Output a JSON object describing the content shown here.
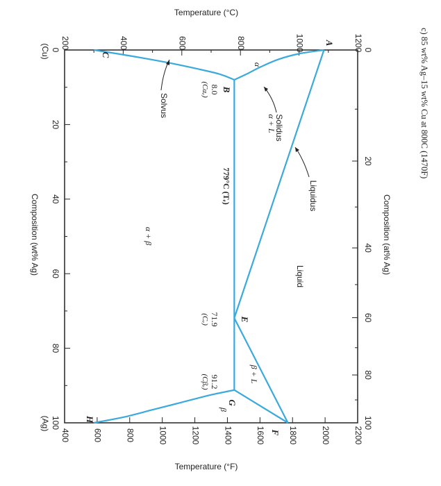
{
  "heading": "c)   85 wt% Ag–15 wt% Cu at 800C (1470F)",
  "colors": {
    "curve": "#3aa9dc",
    "axis": "#222222"
  },
  "chart_data": {
    "type": "phase-diagram",
    "orientation": "rotated 90° clockwise",
    "axes": {
      "temp_c": {
        "label": "Temperature (°C)",
        "range": [
          200,
          1200
        ],
        "ticks": [
          "200",
          "400",
          "600",
          "800",
          "1000",
          "1200"
        ]
      },
      "temp_f": {
        "label": "Temperature (°F)",
        "range": [
          400,
          2200
        ],
        "ticks": [
          "400",
          "600",
          "800",
          "1000",
          "1200",
          "1400",
          "1600",
          "1800",
          "2000",
          "2200"
        ]
      },
      "wt_ag": {
        "label": "Composition (wt% Ag)",
        "range": [
          0,
          100
        ],
        "ticks": [
          "0",
          "20",
          "40",
          "60",
          "80",
          "100"
        ]
      },
      "at_ag": {
        "label": "Composition (at% Ag)",
        "range": [
          0,
          100
        ],
        "ticks": [
          "0",
          "20",
          "40",
          "60",
          "80",
          "100"
        ]
      }
    },
    "end_labels": {
      "left": "(Cu)",
      "right": "(Ag)"
    },
    "points": {
      "A": {
        "wt": 0,
        "temp_c": 1085
      },
      "B": {
        "wt": 8.0,
        "temp_c": 779
      },
      "C": {
        "wt": 0,
        "temp_c": 300
      },
      "E": {
        "wt": 71.9,
        "temp_c": 779
      },
      "F": {
        "wt": 100,
        "temp_c": 962
      },
      "G": {
        "wt": 91.2,
        "temp_c": 779
      },
      "H": {
        "wt": 100,
        "temp_c": 300
      }
    },
    "curves": {
      "solidus_alpha": [
        [
          0,
          1085
        ],
        [
          1,
          1000
        ],
        [
          2.5,
          930
        ],
        [
          4.5,
          870
        ],
        [
          6.5,
          820
        ],
        [
          8.0,
          779
        ]
      ],
      "liquidus_cu": [
        [
          0,
          1085
        ],
        [
          71.9,
          779
        ]
      ],
      "liquidus_ag": [
        [
          71.9,
          779
        ],
        [
          100,
          962
        ]
      ],
      "solidus_beta": [
        [
          91.2,
          779
        ],
        [
          100,
          962
        ]
      ],
      "solvus_alpha": [
        [
          8.0,
          779
        ],
        [
          6.5,
          730
        ],
        [
          5,
          650
        ],
        [
          3.5,
          560
        ],
        [
          2.2,
          470
        ],
        [
          1,
          380
        ],
        [
          0,
          300
        ]
      ],
      "solvus_beta": [
        [
          91.2,
          779
        ],
        [
          92.5,
          700
        ],
        [
          94.5,
          600
        ],
        [
          96.5,
          500
        ],
        [
          98.5,
          400
        ],
        [
          100,
          300
        ]
      ],
      "eutectic_line": [
        [
          8.0,
          779
        ],
        [
          91.2,
          779
        ]
      ]
    },
    "annotations": {
      "A": "A",
      "B": "B",
      "C": "C",
      "E": "E",
      "F": "F",
      "G": "G",
      "H": "H",
      "alpha": "α",
      "beta": "β",
      "alpha_L": "α + L",
      "beta_L": "β + L",
      "alpha_beta": "α + β",
      "liquid": "Liquid",
      "solidus": "Solidus",
      "liquidus": "Liquidus",
      "solvus": "Solvus",
      "eutectic_temp": "779°C (Tₑ)",
      "b_value": "8.0",
      "b_sub": "(Cαₑ)",
      "e_value": "71.9",
      "e_sub": "(Cₑ)",
      "g_value": "91.2",
      "g_sub": "(Cβₑ)"
    }
  }
}
